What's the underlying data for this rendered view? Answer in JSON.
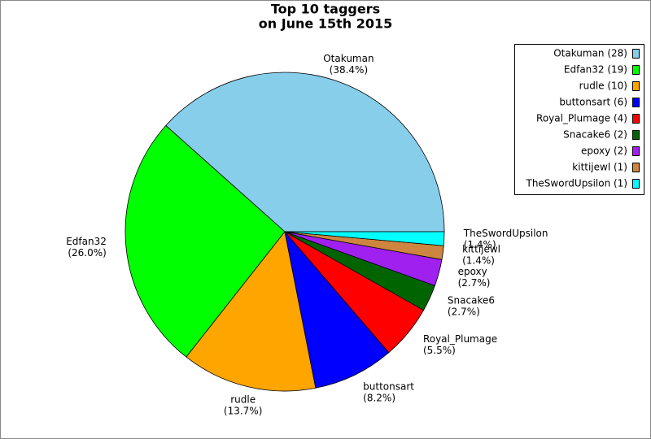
{
  "chart_data": {
    "type": "pie",
    "title": "Top 10 taggers",
    "subtitle": "on June 15th 2015",
    "categories": [
      "Otakuman",
      "Edfan32",
      "rudle",
      "buttonsart",
      "Royal_Plumage",
      "Snacake6",
      "epoxy",
      "kittijewl",
      "TheSwordUpsilon"
    ],
    "values": [
      38.4,
      26.0,
      13.7,
      8.2,
      5.5,
      2.7,
      2.7,
      1.4,
      1.4
    ],
    "value_labels": [
      "(38.4%)",
      "(26.0%)",
      "(13.7%)",
      "(8.2%)",
      "(5.5%)",
      "(2.7%)",
      "(2.7%)",
      "(1.4%)",
      "(1.4%)"
    ],
    "colors": [
      "#87ceeb",
      "#00ff00",
      "#ffa500",
      "#0000ff",
      "#ff0000",
      "#006400",
      "#a020f0",
      "#cd853f",
      "#00ffff"
    ],
    "legend": [
      "Otakuman (28)",
      "Edfan32 (19)",
      "rudle (10)",
      "buttonsart (6)",
      "Royal_Plumage (4)",
      "Snacake6 (2)",
      "epoxy (2)",
      "kittijewl (1)",
      "TheSwordUpsilon (1)"
    ],
    "legend_position": "upper right"
  }
}
